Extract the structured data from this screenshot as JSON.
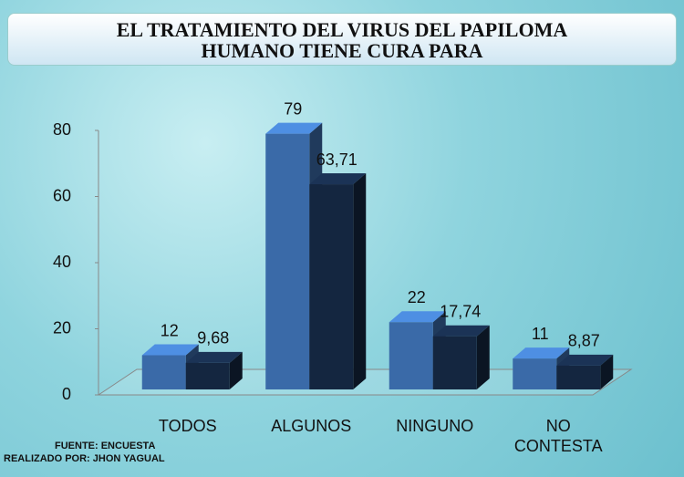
{
  "chart_data": {
    "type": "bar3d",
    "title": "EL TRATAMIENTO DEL VIRUS DEL PAPILOMA HUMANO TIENE CURA PARA",
    "categories": [
      "TODOS",
      "ALGUNOS",
      "NINGUNO",
      "NO CONTESTA"
    ],
    "series": [
      {
        "color": "#3a6aa8",
        "values": [
          12,
          79,
          22,
          11
        ],
        "value_labels": [
          "12",
          "79",
          "22",
          "11"
        ]
      },
      {
        "color": "#142640",
        "values": [
          9.68,
          63.71,
          17.74,
          8.87
        ],
        "value_labels": [
          "9,68",
          "63,71",
          "17,74",
          "8,87"
        ]
      }
    ],
    "ylim": [
      0,
      80
    ],
    "yticks": [
      0,
      20,
      40,
      60,
      80
    ],
    "source": "FUENTE: ENCUESTA",
    "author": "REALIZADO POR: JHON YAGUAL"
  }
}
